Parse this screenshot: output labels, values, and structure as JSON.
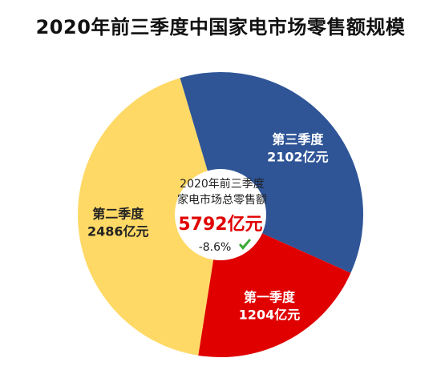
{
  "title": "2020年前三季度中国家电市场零售额规模",
  "chart_data": {
    "type": "pie",
    "style": "donut",
    "unit": "亿元",
    "title": "2020年前三季度中国家电市场零售额规模",
    "center": {
      "line1": "2020年前三季度",
      "line2": "家电市场总零售额",
      "total": "5792亿元",
      "change": "-8.6%",
      "change_icon": "down-check-arrow-icon"
    },
    "slices": [
      {
        "name": "第三季度",
        "value": 2102,
        "display": "2102亿元",
        "color": "#2F5597"
      },
      {
        "name": "第一季度",
        "value": 1204,
        "display": "1204亿元",
        "color": "#E00000"
      },
      {
        "name": "第二季度",
        "value": 2486,
        "display": "2486亿元",
        "color": "#FFD966"
      }
    ],
    "colors": {
      "total_text": "#E00000",
      "change_icon": "#3AAA35"
    }
  }
}
